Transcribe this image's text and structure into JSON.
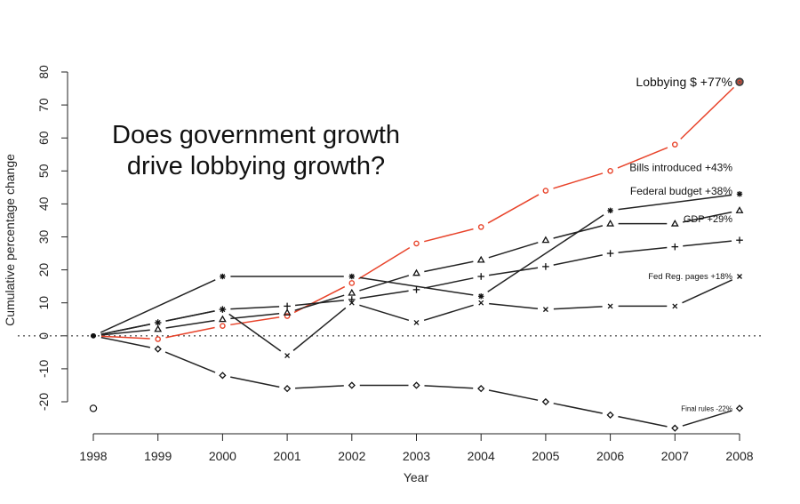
{
  "chart_data": {
    "type": "line",
    "title": "Does government growth drive lobbying growth?",
    "title_lines": [
      "Does government growth",
      "drive lobbying growth?"
    ],
    "xlabel": "Year",
    "ylabel": "Cumulative percentage change",
    "x": [
      1998,
      1999,
      2000,
      2001,
      2002,
      2003,
      2004,
      2005,
      2006,
      2007,
      2008
    ],
    "xlim": [
      1998,
      2008
    ],
    "ylim": [
      -20,
      80
    ],
    "x_ticks": [
      "1998",
      "1999",
      "2000",
      "2001",
      "2002",
      "2003",
      "2004",
      "2005",
      "2006",
      "2007",
      "2008"
    ],
    "y_ticks": [
      "-20",
      "-10",
      "0",
      "10",
      "20",
      "30",
      "40",
      "50",
      "60",
      "70",
      "80"
    ],
    "y_tick_values": [
      -20,
      -10,
      0,
      10,
      20,
      30,
      40,
      50,
      60,
      70,
      80
    ],
    "reference_line": {
      "y": 0,
      "style": "dotted"
    },
    "grid": false,
    "series": [
      {
        "name": "Lobbying $",
        "end_label": "Lobbying $ +77%",
        "marker": "circle",
        "color": "#e8432a",
        "x": [
          1998,
          1999,
          2000,
          2001,
          2002,
          2003,
          2004,
          2005,
          2006,
          2007,
          2008
        ],
        "values": [
          0,
          -1,
          3,
          6,
          16,
          28,
          33,
          44,
          50,
          58,
          77
        ]
      },
      {
        "name": "Bills introduced",
        "end_label": "Bills introduced +43%",
        "marker": "asterisk",
        "color": "#111111",
        "x": [
          1998,
          2000,
          2002,
          2004,
          2006,
          2008
        ],
        "values": [
          0,
          18,
          18,
          12,
          38,
          43
        ]
      },
      {
        "name": "Federal budget",
        "end_label": "Federal budget +38%",
        "marker": "triangle",
        "color": "#111111",
        "x": [
          1998,
          1999,
          2000,
          2001,
          2002,
          2003,
          2004,
          2005,
          2006,
          2007,
          2008
        ],
        "values": [
          0,
          2,
          5,
          7,
          13,
          19,
          23,
          29,
          34,
          34,
          38
        ]
      },
      {
        "name": "GDP",
        "end_label": "GDP +29%",
        "marker": "plus",
        "color": "#111111",
        "x": [
          1998,
          1999,
          2000,
          2001,
          2002,
          2003,
          2004,
          2005,
          2006,
          2007,
          2008
        ],
        "values": [
          0,
          4,
          8,
          9,
          11,
          14,
          18,
          21,
          25,
          27,
          29
        ]
      },
      {
        "name": "Fed Reg. pages",
        "end_label": "Fed Reg. pages +18%",
        "marker": "cross",
        "color": "#111111",
        "x": [
          1998,
          1999,
          2000,
          2001,
          2002,
          2003,
          2004,
          2005,
          2006,
          2007,
          2008
        ],
        "values": [
          0,
          4,
          8,
          -6,
          10,
          4,
          10,
          8,
          9,
          9,
          18
        ]
      },
      {
        "name": "Final rules",
        "end_label": "Final rules -22%",
        "marker": "diamond",
        "color": "#111111",
        "x": [
          1998,
          1999,
          2000,
          2001,
          2002,
          2003,
          2004,
          2005,
          2006,
          2007,
          2008
        ],
        "values": [
          0,
          -4,
          -12,
          -16,
          -15,
          -15,
          -16,
          -20,
          -24,
          -28,
          -22
        ]
      }
    ],
    "stray_marker": {
      "marker": "open-circle",
      "x": 1998,
      "y": -22
    }
  }
}
